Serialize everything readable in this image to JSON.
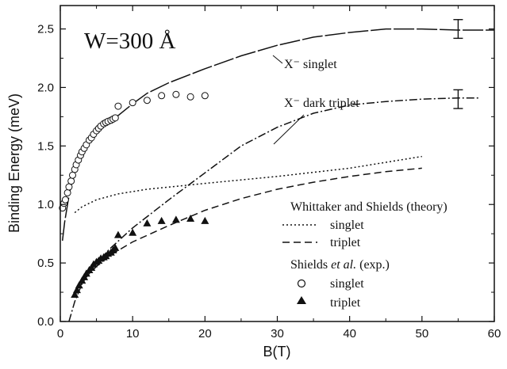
{
  "chart_data": {
    "type": "scatter",
    "title": "",
    "xlabel": "B(T)",
    "ylabel": "Binding Energy (meV)",
    "xlim": [
      0,
      60
    ],
    "ylim": [
      0,
      2.7
    ],
    "xticks": [
      0,
      10,
      20,
      30,
      40,
      50,
      60
    ],
    "yticks": [
      0.0,
      0.5,
      1.0,
      1.5,
      2.0,
      2.5
    ],
    "xtick_labels": [
      "0",
      "10",
      "20",
      "30",
      "40",
      "50",
      "60"
    ],
    "ytick_labels": [
      "0.0",
      "0.5",
      "1.0",
      "1.5",
      "2.0",
      "2.5"
    ],
    "grid": false,
    "annotations": {
      "well_width": "W=300 Å",
      "singlet_curve_label": "X⁻ singlet",
      "dark_triplet_label": "X⁻ dark triplet"
    },
    "legend": {
      "position": "bottom-right",
      "theory_header": "Whittaker and Shields (theory)",
      "theory_singlet": "singlet",
      "theory_triplet": "triplet",
      "exp_header_before": "Shields ",
      "exp_header_italic": "et al.",
      "exp_header_after": " (exp.)",
      "exp_singlet": "singlet",
      "exp_triplet": "triplet"
    },
    "series": [
      {
        "name": "X⁻ singlet",
        "kind": "long-dash-line",
        "x": [
          0.3,
          0.6,
          1,
          1.5,
          2,
          3,
          4,
          5,
          6,
          7,
          8,
          10,
          12,
          15,
          20,
          25,
          30,
          35,
          40,
          45,
          50,
          55,
          60
        ],
        "y": [
          0.69,
          0.85,
          1.0,
          1.18,
          1.3,
          1.45,
          1.56,
          1.63,
          1.68,
          1.72,
          1.76,
          1.86,
          1.95,
          2.04,
          2.16,
          2.27,
          2.36,
          2.43,
          2.47,
          2.5,
          2.5,
          2.49,
          2.49
        ]
      },
      {
        "name": "X⁻ dark triplet",
        "kind": "dash-dot-line",
        "x": [
          1.2,
          2,
          3,
          4,
          5,
          7,
          10,
          15,
          20,
          25,
          30,
          35,
          40,
          45,
          50,
          55,
          58
        ],
        "y": [
          0.0,
          0.17,
          0.32,
          0.42,
          0.5,
          0.63,
          0.8,
          1.04,
          1.27,
          1.5,
          1.66,
          1.78,
          1.85,
          1.88,
          1.9,
          1.91,
          1.91
        ]
      },
      {
        "name": "singlet",
        "kind": "dotted-line",
        "x": [
          2,
          3,
          5,
          8,
          12,
          20,
          30,
          40,
          50
        ],
        "y": [
          0.93,
          0.98,
          1.04,
          1.09,
          1.13,
          1.18,
          1.24,
          1.31,
          1.41
        ]
      },
      {
        "name": "triplet",
        "kind": "dashed-line",
        "x": [
          2,
          3,
          4,
          5,
          7,
          10,
          15,
          20,
          25,
          30,
          35,
          40,
          45,
          50
        ],
        "y": [
          0.22,
          0.33,
          0.41,
          0.47,
          0.57,
          0.68,
          0.82,
          0.95,
          1.05,
          1.13,
          1.19,
          1.24,
          1.28,
          1.31
        ]
      },
      {
        "name": "singlet",
        "kind": "open-circles",
        "x": [
          0.3,
          0.5,
          0.7,
          1.0,
          1.2,
          1.5,
          1.7,
          2.0,
          2.2,
          2.5,
          2.8,
          3.0,
          3.3,
          3.6,
          4.0,
          4.3,
          4.6,
          5.0,
          5.3,
          5.6,
          6.0,
          6.3,
          6.6,
          7.0,
          7.3,
          7.6,
          8.0,
          10.0,
          12.0,
          14.0,
          16.0,
          18.0,
          20.0
        ],
        "y": [
          0.97,
          1.01,
          1.04,
          1.1,
          1.15,
          1.2,
          1.25,
          1.3,
          1.34,
          1.38,
          1.42,
          1.45,
          1.48,
          1.51,
          1.55,
          1.57,
          1.6,
          1.63,
          1.65,
          1.67,
          1.69,
          1.7,
          1.71,
          1.72,
          1.73,
          1.74,
          1.84,
          1.87,
          1.89,
          1.93,
          1.94,
          1.92,
          1.93
        ]
      },
      {
        "name": "triplet",
        "kind": "filled-triangles",
        "x": [
          2.0,
          2.3,
          2.6,
          3.0,
          3.3,
          3.6,
          4.0,
          4.3,
          4.6,
          5.0,
          5.3,
          5.6,
          6.0,
          6.3,
          6.6,
          7.0,
          7.3,
          7.6,
          8.0,
          10.0,
          12.0,
          14.0,
          16.0,
          18.0,
          20.0
        ],
        "y": [
          0.23,
          0.27,
          0.31,
          0.35,
          0.38,
          0.41,
          0.44,
          0.46,
          0.49,
          0.51,
          0.52,
          0.54,
          0.55,
          0.56,
          0.58,
          0.59,
          0.61,
          0.63,
          0.74,
          0.76,
          0.84,
          0.86,
          0.87,
          0.88,
          0.86
        ]
      },
      {
        "name": "error bars",
        "kind": "error-bars",
        "x": [
          55,
          55
        ],
        "y": [
          2.5,
          1.9
        ],
        "err": [
          0.08,
          0.08
        ]
      }
    ]
  }
}
